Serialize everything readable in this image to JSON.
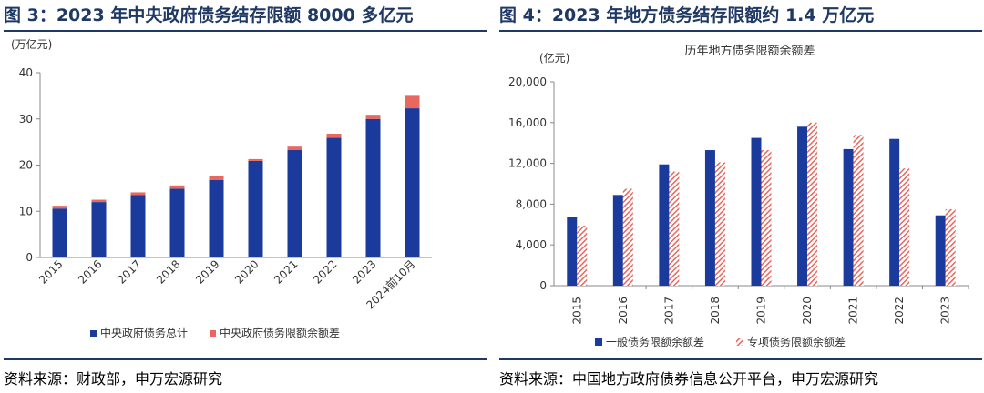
{
  "left": {
    "title": "图 3：2023 年中央政府债务结存限额 8000 多亿元",
    "source": "资料来源：财政部，申万宏源研究",
    "chart_data": {
      "type": "bar",
      "stacked": true,
      "unit_label": "(万亿元)",
      "categories": [
        "2015",
        "2016",
        "2017",
        "2018",
        "2019",
        "2020",
        "2021",
        "2022",
        "2023",
        "2024前10月"
      ],
      "series": [
        {
          "name": "中央政府债务总计",
          "color": "#1a3a9c",
          "values": [
            10.6,
            12.0,
            13.5,
            14.9,
            16.8,
            20.9,
            23.3,
            25.9,
            30.0,
            32.3
          ]
        },
        {
          "name": "中央政府债务限额余额差",
          "color": "#e8685f",
          "values": [
            0.6,
            0.5,
            0.6,
            0.7,
            0.8,
            0.4,
            0.7,
            0.9,
            0.9,
            2.9
          ]
        }
      ],
      "ylim": [
        0,
        40
      ],
      "yticks": [
        0,
        10,
        20,
        30,
        40
      ],
      "grid": false,
      "legend": "bottom"
    }
  },
  "right": {
    "title": "图 4：2023 年地方债务结存限额约 1.4 万亿元",
    "source": "资料来源：中国地方政府债券信息公开平台，申万宏源研究",
    "chart_data": {
      "type": "bar",
      "stacked": false,
      "title": "历年地方债务限额余额差",
      "unit_label": "(亿元)",
      "categories": [
        "2015",
        "2016",
        "2017",
        "2018",
        "2019",
        "2020",
        "2021",
        "2022",
        "2023"
      ],
      "series": [
        {
          "name": "一般债务限额余额差",
          "color": "#1a3a9c",
          "values": [
            6700,
            8900,
            11900,
            13300,
            14500,
            15600,
            13400,
            14400,
            6900
          ]
        },
        {
          "name": "专项债务限额余额差",
          "color": "#e8685f",
          "pattern": "hatched",
          "values": [
            5900,
            9500,
            11200,
            12100,
            13300,
            16000,
            14800,
            11500,
            7500
          ]
        }
      ],
      "ylim": [
        0,
        20000
      ],
      "yticks": [
        "0",
        "4,000",
        "8,000",
        "12,000",
        "16,000",
        "20,000"
      ],
      "grid": false,
      "legend": "bottom"
    }
  }
}
